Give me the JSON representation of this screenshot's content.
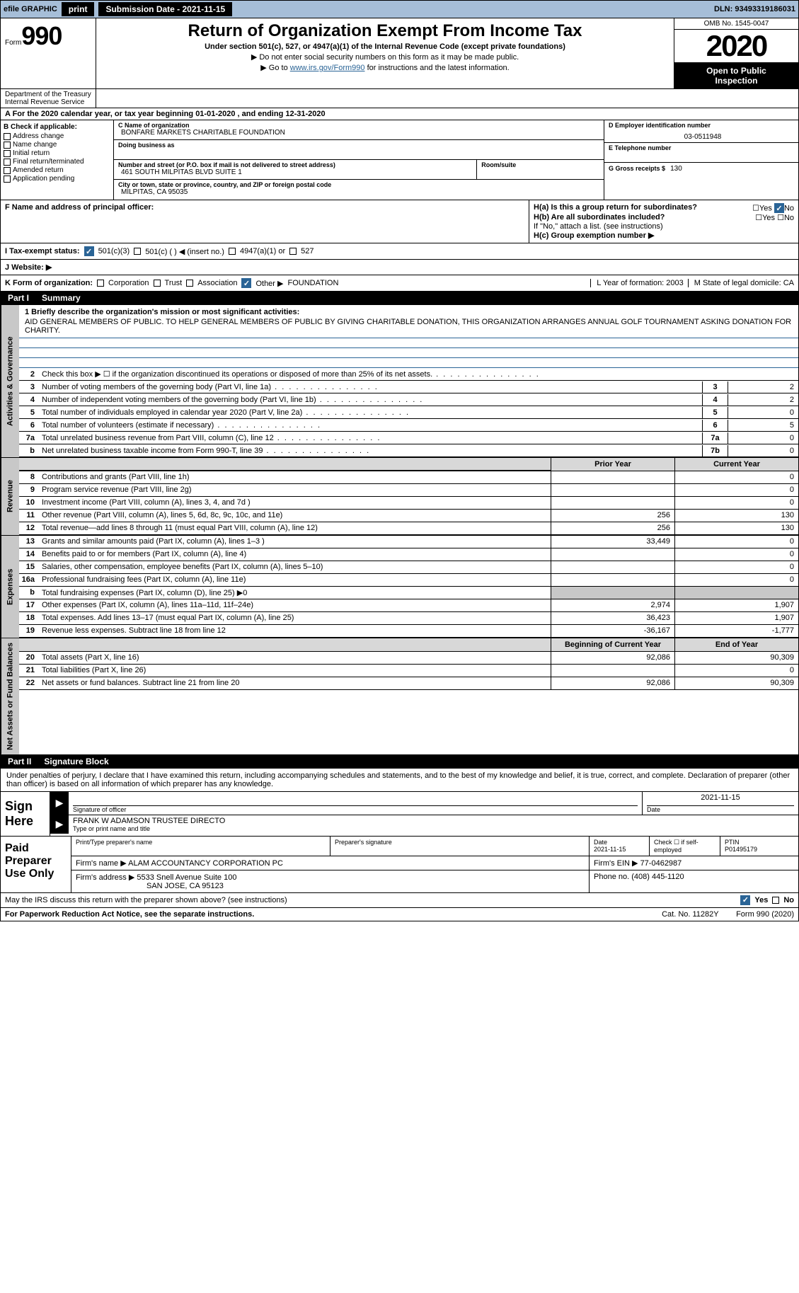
{
  "topbar": {
    "efile": "efile GRAPHIC",
    "print": "print",
    "sub_label": "Submission Date - ",
    "sub_date": "2021-11-15",
    "dln": "DLN: 93493319186031"
  },
  "header": {
    "form_word": "Form",
    "form_num": "990",
    "title": "Return of Organization Exempt From Income Tax",
    "subtitle": "Under section 501(c), 527, or 4947(a)(1) of the Internal Revenue Code (except private foundations)",
    "note1": "▶ Do not enter social security numbers on this form as it may be made public.",
    "note2_pre": "▶ Go to ",
    "note2_link": "www.irs.gov/Form990",
    "note2_post": " for instructions and the latest information.",
    "omb": "OMB No. 1545-0047",
    "year": "2020",
    "inspection1": "Open to Public",
    "inspection2": "Inspection",
    "dept": "Department of the Treasury\nInternal Revenue Service"
  },
  "period": "A   For the 2020 calendar year, or tax year beginning 01-01-2020    , and ending 12-31-2020",
  "colB": {
    "title": "B Check if applicable:",
    "items": [
      "Address change",
      "Name change",
      "Initial return",
      "Final return/terminated",
      "Amended return",
      "Application pending"
    ]
  },
  "colC": {
    "name_lab": "C Name of organization",
    "name": "BONFARE MARKETS CHARITABLE FOUNDATION",
    "dba_lab": "Doing business as",
    "dba": "",
    "addr_lab": "Number and street (or P.O. box if mail is not delivered to street address)",
    "addr": "461 SOUTH MILPITAS BLVD SUITE 1",
    "room_lab": "Room/suite",
    "city_lab": "City or town, state or province, country, and ZIP or foreign postal code",
    "city": "MILPITAS, CA  95035"
  },
  "colD": {
    "ein_lab": "D Employer identification number",
    "ein": "03-0511948",
    "tel_lab": "E Telephone number",
    "tel": "",
    "gross_lab": "G Gross receipts $",
    "gross": "130"
  },
  "rowF": {
    "left_lab": "F  Name and address of principal officer:",
    "ha": "H(a)  Is this a group return for subordinates?",
    "hb": "H(b)  Are all subordinates included?",
    "hb_note": "If \"No,\" attach a list. (see instructions)",
    "hc": "H(c)  Group exemption number ▶",
    "yes": "Yes",
    "no": "No"
  },
  "rowI": {
    "label": "I   Tax-exempt status:",
    "o1": "501(c)(3)",
    "o2": "501(c) (  ) ◀ (insert no.)",
    "o3": "4947(a)(1) or",
    "o4": "527"
  },
  "rowJ": {
    "label": "J   Website: ▶"
  },
  "rowK": {
    "label": "K Form of organization:",
    "opts": [
      "Corporation",
      "Trust",
      "Association",
      "Other ▶"
    ],
    "other_val": "FOUNDATION",
    "l": "L Year of formation: 2003",
    "m": "M State of legal domicile: CA"
  },
  "part1": {
    "num": "Part I",
    "title": "Summary"
  },
  "mission": {
    "label": "1   Briefly describe the organization's mission or most significant activities:",
    "text": "AID GENERAL MEMBERS OF PUBLIC. TO HELP GENERAL MEMBERS OF PUBLIC BY GIVING CHARITABLE DONATION, THIS ORGANIZATION ARRANGES ANNUAL GOLF TOURNAMENT ASKING DONATION FOR CHARITY."
  },
  "gov_rows": [
    {
      "n": "2",
      "t": "Check this box ▶ ☐  if the organization discontinued its operations or disposed of more than 25% of its net assets.",
      "box": "",
      "val": ""
    },
    {
      "n": "3",
      "t": "Number of voting members of the governing body (Part VI, line 1a)",
      "box": "3",
      "val": "2"
    },
    {
      "n": "4",
      "t": "Number of independent voting members of the governing body (Part VI, line 1b)",
      "box": "4",
      "val": "2"
    },
    {
      "n": "5",
      "t": "Total number of individuals employed in calendar year 2020 (Part V, line 2a)",
      "box": "5",
      "val": "0"
    },
    {
      "n": "6",
      "t": "Total number of volunteers (estimate if necessary)",
      "box": "6",
      "val": "5"
    },
    {
      "n": "7a",
      "t": "Total unrelated business revenue from Part VIII, column (C), line 12",
      "box": "7a",
      "val": "0"
    },
    {
      "n": "b",
      "t": "Net unrelated business taxable income from Form 990-T, line 39",
      "box": "7b",
      "val": "0"
    }
  ],
  "col_hdr": {
    "prior": "Prior Year",
    "current": "Current Year"
  },
  "revenue": [
    {
      "n": "8",
      "t": "Contributions and grants (Part VIII, line 1h)",
      "c1": "",
      "c2": "0"
    },
    {
      "n": "9",
      "t": "Program service revenue (Part VIII, line 2g)",
      "c1": "",
      "c2": "0"
    },
    {
      "n": "10",
      "t": "Investment income (Part VIII, column (A), lines 3, 4, and 7d )",
      "c1": "",
      "c2": "0"
    },
    {
      "n": "11",
      "t": "Other revenue (Part VIII, column (A), lines 5, 6d, 8c, 9c, 10c, and 11e)",
      "c1": "256",
      "c2": "130"
    },
    {
      "n": "12",
      "t": "Total revenue—add lines 8 through 11 (must equal Part VIII, column (A), line 12)",
      "c1": "256",
      "c2": "130"
    }
  ],
  "expenses": [
    {
      "n": "13",
      "t": "Grants and similar amounts paid (Part IX, column (A), lines 1–3 )",
      "c1": "33,449",
      "c2": "0"
    },
    {
      "n": "14",
      "t": "Benefits paid to or for members (Part IX, column (A), line 4)",
      "c1": "",
      "c2": "0"
    },
    {
      "n": "15",
      "t": "Salaries, other compensation, employee benefits (Part IX, column (A), lines 5–10)",
      "c1": "",
      "c2": "0"
    },
    {
      "n": "16a",
      "t": "Professional fundraising fees (Part IX, column (A), line 11e)",
      "c1": "",
      "c2": "0"
    },
    {
      "n": "b",
      "t": "Total fundraising expenses (Part IX, column (D), line 25) ▶0",
      "c1": "",
      "c2": "",
      "grey": true
    },
    {
      "n": "17",
      "t": "Other expenses (Part IX, column (A), lines 11a–11d, 11f–24e)",
      "c1": "2,974",
      "c2": "1,907"
    },
    {
      "n": "18",
      "t": "Total expenses. Add lines 13–17 (must equal Part IX, column (A), line 25)",
      "c1": "36,423",
      "c2": "1,907"
    },
    {
      "n": "19",
      "t": "Revenue less expenses. Subtract line 18 from line 12",
      "c1": "-36,167",
      "c2": "-1,777"
    }
  ],
  "net_hdr": {
    "begin": "Beginning of Current Year",
    "end": "End of Year"
  },
  "net": [
    {
      "n": "20",
      "t": "Total assets (Part X, line 16)",
      "c1": "92,086",
      "c2": "90,309"
    },
    {
      "n": "21",
      "t": "Total liabilities (Part X, line 26)",
      "c1": "",
      "c2": "0"
    },
    {
      "n": "22",
      "t": "Net assets or fund balances. Subtract line 21 from line 20",
      "c1": "92,086",
      "c2": "90,309"
    }
  ],
  "vtabs": {
    "gov": "Activities & Governance",
    "rev": "Revenue",
    "exp": "Expenses",
    "net": "Net Assets or Fund Balances"
  },
  "part2": {
    "num": "Part II",
    "title": "Signature Block"
  },
  "sig": {
    "perjury": "Under penalties of perjury, I declare that I have examined this return, including accompanying schedules and statements, and to the best of my knowledge and belief, it is true, correct, and complete. Declaration of preparer (other than officer) is based on all information of which preparer has any knowledge.",
    "sign_here": "Sign Here",
    "sig_officer": "Signature of officer",
    "date": "Date",
    "sig_date": "2021-11-15",
    "name": "FRANK W ADAMSON  TRUSTEE DIRECTO",
    "name_lab": "Type or print name and title"
  },
  "paid": {
    "label": "Paid Preparer Use Only",
    "h1": "Print/Type preparer's name",
    "h2": "Preparer's signature",
    "h3": "Date",
    "h3v": "2021-11-15",
    "h4": "Check ☐ if self-employed",
    "h5": "PTIN",
    "h5v": "P01495179",
    "firm_lab": "Firm's name    ▶",
    "firm": "ALAM ACCOUNTANCY CORPORATION PC",
    "ein_lab": "Firm's EIN ▶",
    "ein": "77-0462987",
    "addr_lab": "Firm's address ▶",
    "addr1": "5533 Snell Avenue Suite 100",
    "addr2": "SAN JOSE, CA  95123",
    "phone_lab": "Phone no.",
    "phone": "(408) 445-1120"
  },
  "footer": {
    "discuss": "May the IRS discuss this return with the preparer shown above? (see instructions)",
    "yes": "Yes",
    "no": "No",
    "paperwork": "For Paperwork Reduction Act Notice, see the separate instructions.",
    "cat": "Cat. No. 11282Y",
    "form": "Form 990 (2020)"
  }
}
